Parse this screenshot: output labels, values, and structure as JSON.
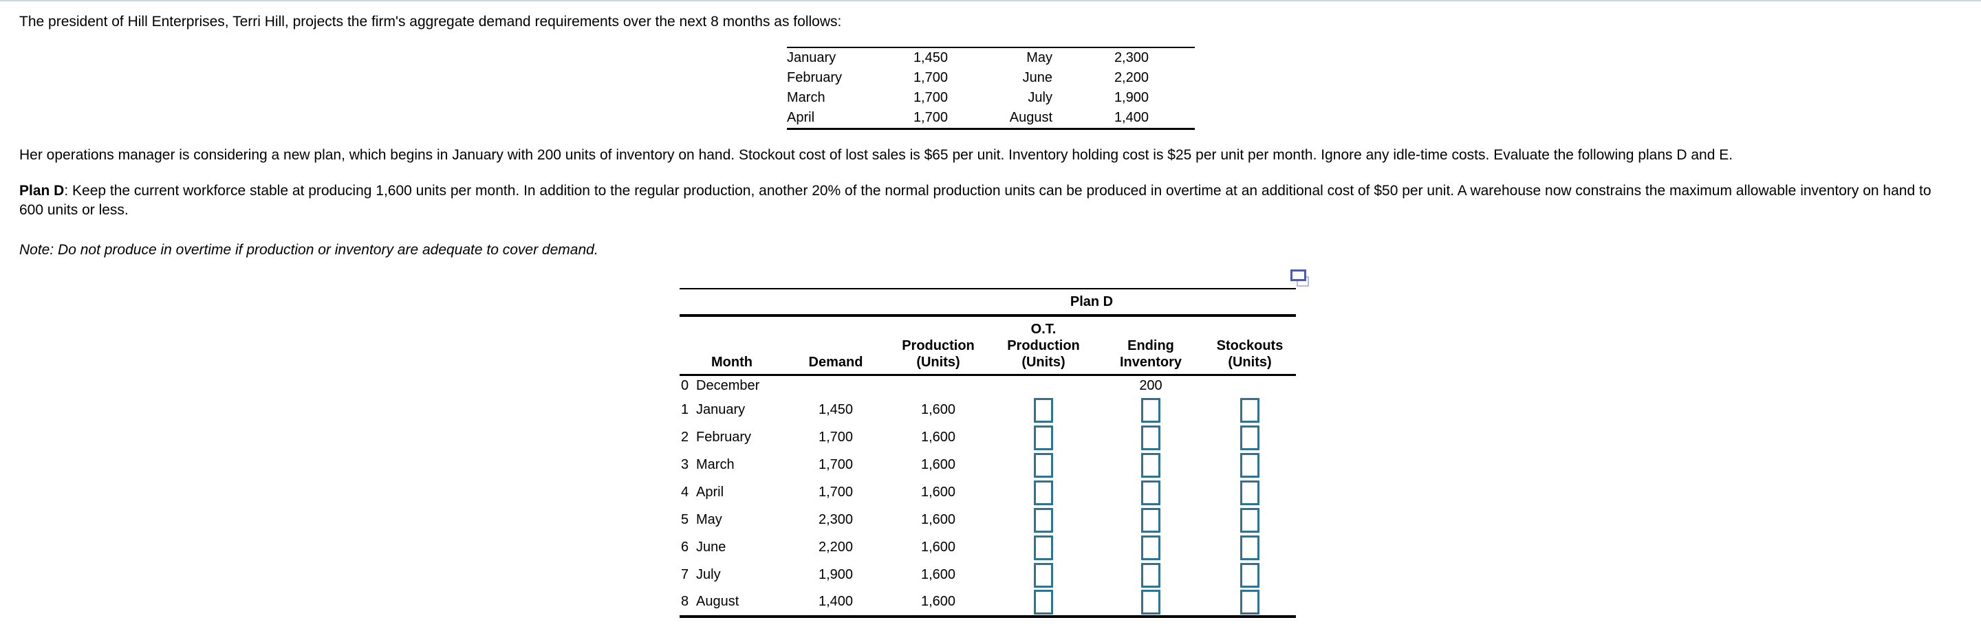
{
  "page": {
    "intro": "The president of Hill Enterprises, Terri Hill, projects the firm's aggregate demand requirements over the next 8 months as follows:",
    "operations_paragraph": "Her operations manager is considering a new plan, which begins in January with 200 units of inventory on hand. Stockout cost of lost sales is $65 per unit. Inventory holding cost is $25 per unit per month. Ignore any idle-time costs. Evaluate the following plans D and E.",
    "plan_d_label": "Plan D",
    "plan_d_text": ": Keep the current workforce stable at producing 1,600 units per month. In addition to the regular production, another 20% of the normal production units can be produced in overtime at an additional cost of $50 per unit. A warehouse now constrains the maximum allowable inventory on hand to 600 units or less.",
    "note": "Note: Do not produce in overtime if production or inventory are adequate to cover demand."
  },
  "demand_table": {
    "rows": [
      [
        "January",
        "1,450",
        "May",
        "2,300"
      ],
      [
        "February",
        "1,700",
        "June",
        "2,200"
      ],
      [
        "March",
        "1,700",
        "July",
        "1,900"
      ],
      [
        "April",
        "1,700",
        "August",
        "1,400"
      ]
    ]
  },
  "plan_table": {
    "title": "Plan D",
    "headers": {
      "month": "Month",
      "demand": "Demand",
      "production": "Production\n(Units)",
      "ot_production": "O.T.\nProduction\n(Units)",
      "ending_inventory": "Ending\nInventory",
      "stockouts": "Stockouts\n(Units)"
    },
    "rows": [
      {
        "num": "0",
        "month": "December",
        "demand": "",
        "production": "",
        "ending_inventory": "200",
        "has_inputs": false
      },
      {
        "num": "1",
        "month": "January",
        "demand": "1,450",
        "production": "1,600",
        "has_inputs": true
      },
      {
        "num": "2",
        "month": "February",
        "demand": "1,700",
        "production": "1,600",
        "has_inputs": true
      },
      {
        "num": "3",
        "month": "March",
        "demand": "1,700",
        "production": "1,600",
        "has_inputs": true
      },
      {
        "num": "4",
        "month": "April",
        "demand": "1,700",
        "production": "1,600",
        "has_inputs": true
      },
      {
        "num": "5",
        "month": "May",
        "demand": "2,300",
        "production": "1,600",
        "has_inputs": true
      },
      {
        "num": "6",
        "month": "June",
        "demand": "2,200",
        "production": "1,600",
        "has_inputs": true
      },
      {
        "num": "7",
        "month": "July",
        "demand": "1,900",
        "production": "1,600",
        "has_inputs": true
      },
      {
        "num": "8",
        "month": "August",
        "demand": "1,400",
        "production": "1,600",
        "has_inputs": true
      }
    ],
    "input_columns": [
      "ot-production",
      "ending-inventory",
      "stockouts"
    ]
  },
  "icons": {
    "copy_table_icon": "two-overlapping-rectangles"
  },
  "colors": {
    "input_border": "#2e7492",
    "icon_front": "#4c5ca7",
    "icon_back": "#b3bcdf",
    "page_top_border": "#ccd7e6"
  }
}
